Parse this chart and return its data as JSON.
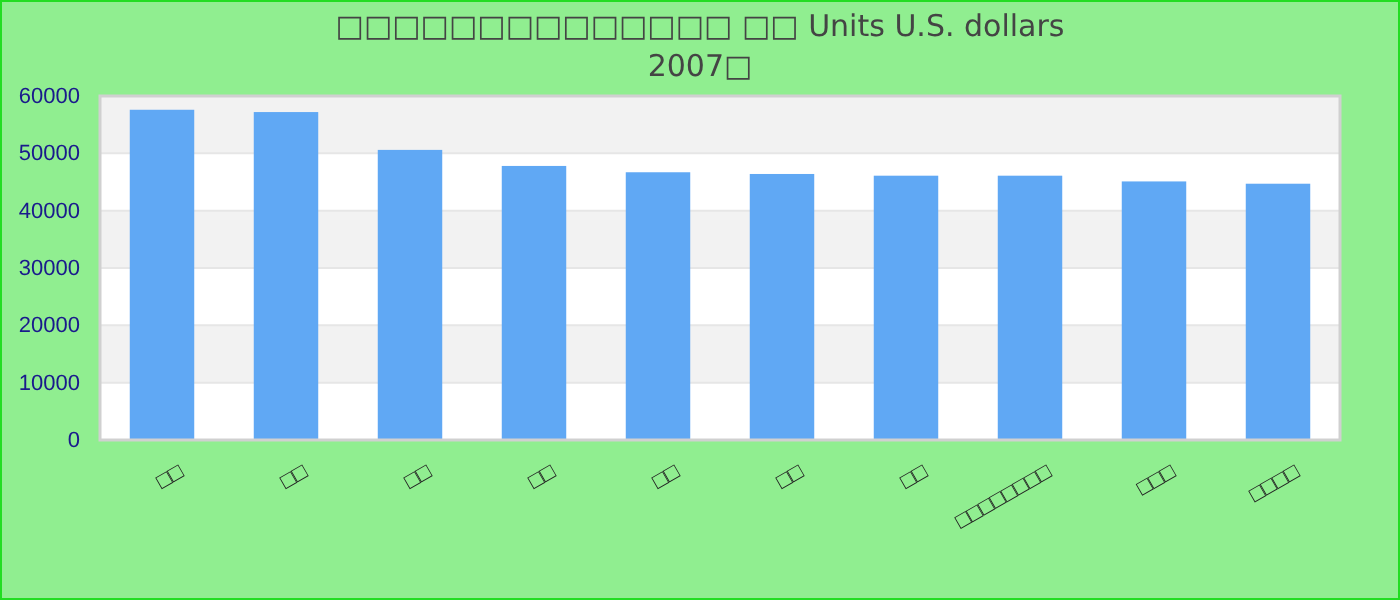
{
  "chart_data": {
    "type": "bar",
    "title": "□□□□□□□□□□□□□□ □□ Units U.S. dollars",
    "subtitle": "2007□",
    "categories": [
      "□□",
      "□□",
      "□□",
      "□□",
      "□□",
      "□□",
      "□□",
      "□□□□□□□□",
      "□□□",
      "□□□□"
    ],
    "values": [
      57600,
      57200,
      50600,
      47800,
      46700,
      46400,
      46100,
      46100,
      45100,
      44700
    ],
    "color": "#60a8f4",
    "ylim": [
      0,
      60000
    ],
    "yticks": [
      0,
      10000,
      20000,
      30000,
      40000,
      50000,
      60000
    ],
    "grid": "y"
  }
}
